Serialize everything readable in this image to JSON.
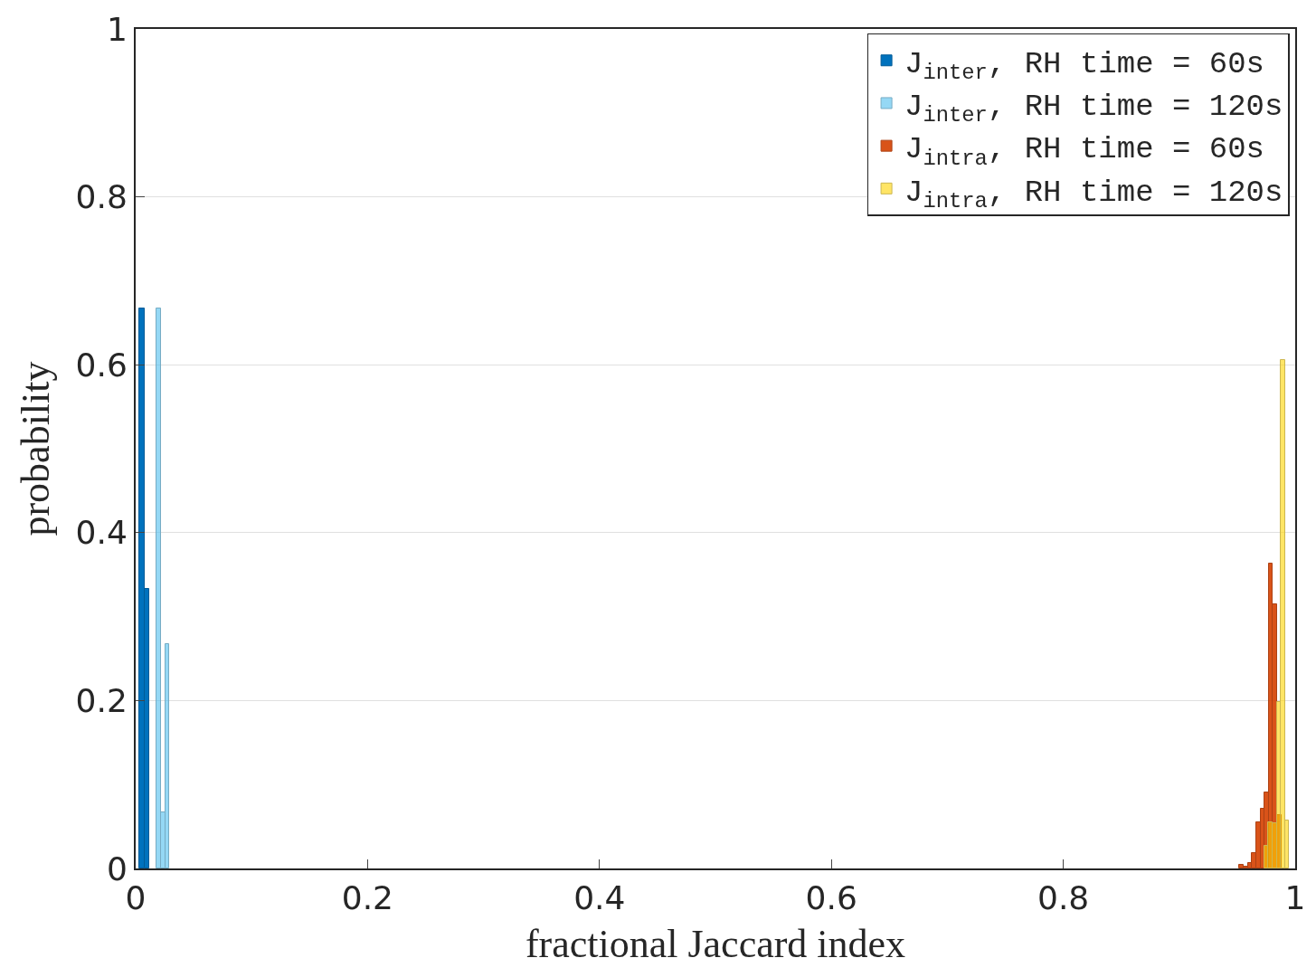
{
  "chart_data": {
    "type": "bar",
    "xlabel": "fractional Jaccard index",
    "ylabel": "probability",
    "xlim": [
      0,
      1
    ],
    "ylim": [
      0,
      1
    ],
    "xticks": [
      0,
      0.2,
      0.4,
      0.6,
      0.8,
      1
    ],
    "yticks": [
      0,
      0.2,
      0.4,
      0.6,
      0.8,
      1
    ],
    "grid": "y",
    "legend": "top right",
    "series": [
      {
        "name": "J$_{inter}$, RH time = 60s",
        "color": "#0072bd",
        "x": [
          0.00525,
          0.00975
        ],
        "values": [
          0.667,
          0.333
        ]
      },
      {
        "name": "J$_{inter}$, RH time = 120s",
        "color": "#95d8f5",
        "x": [
          0.01985,
          0.02355,
          0.02725
        ],
        "values": [
          0.667,
          0.067,
          0.267
        ]
      },
      {
        "name": "J$_{intra}$, RH time = 60s",
        "color": "#d95319",
        "x": [
          0.9538,
          0.9574,
          0.961,
          0.9646,
          0.9682,
          0.9718,
          0.9754,
          0.979,
          0.9826,
          0.9862
        ],
        "values": [
          0.004,
          0.002,
          0.006,
          0.018,
          0.055,
          0.071,
          0.09,
          0.363,
          0.315,
          0.064
        ]
      },
      {
        "name": "J$_{intra}$, RH time = 120s",
        "color": "#ffe566",
        "x": [
          0.9751,
          0.9787,
          0.9823,
          0.9859,
          0.9895,
          0.9931
        ],
        "values": [
          0.027,
          0.055,
          0.054,
          0.198,
          0.606,
          0.057
        ]
      }
    ]
  }
}
